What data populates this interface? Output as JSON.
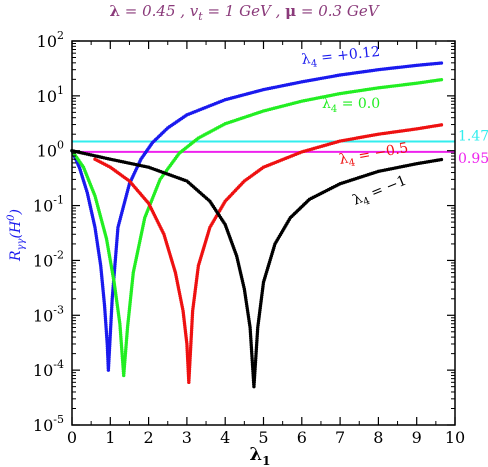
{
  "header": {
    "lambda_sym": "λ",
    "lambda_val": " = 0.45 , v",
    "vt_sub": "t",
    "vt_val": " = 1 GeV , ",
    "mu_sym": "μ",
    "mu_val": " = 0.3 GeV"
  },
  "chart_data": {
    "type": "scatter",
    "title": "λ = 0.45 , vt = 1 GeV , μ = 0.3 GeV",
    "xlabel": "λ1",
    "ylabel": "Rγγ(H0)",
    "xlim": [
      0,
      10
    ],
    "ylim": [
      1e-05,
      100
    ],
    "yscale": "log",
    "x_ticks": [
      "0",
      "1",
      "2",
      "3",
      "4",
      "5",
      "6",
      "7",
      "8",
      "9",
      "10"
    ],
    "y_tick_exponents": [
      "2",
      "1",
      "0",
      "-1",
      "-2",
      "-3",
      "-4",
      "-5"
    ],
    "colors": {
      "blue": "#1a1aee",
      "green": "#22ee22",
      "red": "#ee1111",
      "black": "#000000",
      "cyan": "#33eeee",
      "magenta": "#ee22ee",
      "title": "#8a3a7a"
    },
    "series": [
      {
        "color": "blue",
        "label_main": "λ",
        "label_sub": "4",
        "label_val": " = +0.12",
        "points": [
          [
            0,
            1.0
          ],
          [
            0.2,
            0.48
          ],
          [
            0.4,
            0.17
          ],
          [
            0.6,
            0.04
          ],
          [
            0.75,
            0.008
          ],
          [
            0.85,
            0.0015
          ],
          [
            0.92,
            0.0003
          ],
          [
            0.95,
            0.0001
          ],
          [
            1.05,
            0.002
          ],
          [
            1.2,
            0.04
          ],
          [
            1.5,
            0.25
          ],
          [
            1.8,
            0.7
          ],
          [
            2.1,
            1.4
          ],
          [
            2.5,
            2.6
          ],
          [
            3.0,
            4.5
          ],
          [
            4.0,
            8.5
          ],
          [
            5.0,
            13
          ],
          [
            6.0,
            18
          ],
          [
            7.0,
            24
          ],
          [
            8.0,
            30
          ],
          [
            9.0,
            36
          ],
          [
            9.7,
            40
          ]
        ]
      },
      {
        "color": "green",
        "label_main": "λ",
        "label_sub": "4",
        "label_val": " = 0.0",
        "points": [
          [
            0,
            1.0
          ],
          [
            0.3,
            0.5
          ],
          [
            0.6,
            0.15
          ],
          [
            0.9,
            0.025
          ],
          [
            1.1,
            0.004
          ],
          [
            1.25,
            0.0007
          ],
          [
            1.35,
            8e-05
          ],
          [
            1.45,
            0.0006
          ],
          [
            1.6,
            0.006
          ],
          [
            1.9,
            0.06
          ],
          [
            2.3,
            0.3
          ],
          [
            2.8,
            0.9
          ],
          [
            3.3,
            1.7
          ],
          [
            4.0,
            3.1
          ],
          [
            5.0,
            5.3
          ],
          [
            6.0,
            8
          ],
          [
            7.0,
            11
          ],
          [
            8.0,
            14
          ],
          [
            9.0,
            17
          ],
          [
            9.7,
            20
          ]
        ]
      },
      {
        "color": "red",
        "label_main": "λ",
        "label_sub": "4",
        "label_val": " = −0.5",
        "points": [
          [
            0.6,
            0.7
          ],
          [
            1.0,
            0.5
          ],
          [
            1.5,
            0.28
          ],
          [
            2.0,
            0.11
          ],
          [
            2.4,
            0.03
          ],
          [
            2.7,
            0.006
          ],
          [
            2.9,
            0.0012
          ],
          [
            3.0,
            0.0003
          ],
          [
            3.05,
            6e-05
          ],
          [
            3.15,
            0.0012
          ],
          [
            3.3,
            0.008
          ],
          [
            3.6,
            0.04
          ],
          [
            4.0,
            0.12
          ],
          [
            4.5,
            0.28
          ],
          [
            5.0,
            0.5
          ],
          [
            6.0,
            0.95
          ],
          [
            7.0,
            1.5
          ],
          [
            8.0,
            2.0
          ],
          [
            9.0,
            2.5
          ],
          [
            9.7,
            3.0
          ]
        ]
      },
      {
        "color": "black",
        "label_main": "λ",
        "label_sub": "4",
        "label_val": " = −1",
        "points": [
          [
            0,
            1.0
          ],
          [
            1.0,
            0.7
          ],
          [
            2.0,
            0.5
          ],
          [
            3.0,
            0.28
          ],
          [
            3.6,
            0.12
          ],
          [
            4.0,
            0.045
          ],
          [
            4.3,
            0.012
          ],
          [
            4.5,
            0.003
          ],
          [
            4.65,
            0.0006
          ],
          [
            4.75,
            5e-05
          ],
          [
            4.85,
            0.0006
          ],
          [
            5.0,
            0.004
          ],
          [
            5.3,
            0.02
          ],
          [
            5.7,
            0.06
          ],
          [
            6.2,
            0.13
          ],
          [
            7.0,
            0.25
          ],
          [
            8.0,
            0.42
          ],
          [
            9.0,
            0.58
          ],
          [
            9.7,
            0.7
          ]
        ]
      },
      {
        "color": "cyan",
        "line_value": 1.47,
        "label_val": "1.47"
      },
      {
        "color": "magenta",
        "line_value": 0.95,
        "label_val": "0.95"
      }
    ]
  }
}
